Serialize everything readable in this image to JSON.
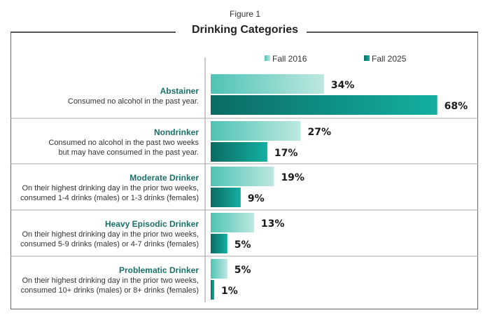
{
  "figure_label": "Figure 1",
  "chart_data": {
    "type": "bar",
    "orientation": "horizontal",
    "title": "Drinking Categories",
    "categories": [
      {
        "name": "Abstainer",
        "description": [
          "Consumed no alcohol in the past year."
        ]
      },
      {
        "name": "Nondrinker",
        "description": [
          "Consumed no alcohol in the past two weeks",
          "but may have consumed in the past year."
        ]
      },
      {
        "name": "Moderate Drinker",
        "description": [
          "On their highest drinking day in the prior two weeks,",
          "consumed 1-4 drinks (males) or 1-3 drinks (females)"
        ]
      },
      {
        "name": "Heavy Episodic Drinker",
        "description": [
          "On their highest drinking day in the prior two weeks,",
          "consumed 5-9 drinks (males) or 4-7 drinks (females)"
        ]
      },
      {
        "name": "Problematic Drinker",
        "description": [
          "On their highest drinking day in the prior two weeks,",
          "consumed 10+ drinks (males) or 8+ drinks (females)"
        ]
      }
    ],
    "series": [
      {
        "name": "Fall 2016",
        "values": [
          34,
          27,
          19,
          13,
          5
        ],
        "color_start": "#4fc3b4",
        "color_end": "#bde8e1"
      },
      {
        "name": "Fall 2025",
        "values": [
          68,
          17,
          9,
          5,
          1
        ],
        "color_start": "#0b6b63",
        "color_end": "#13b0a2"
      }
    ],
    "value_suffix": "%",
    "xlim": [
      0,
      100
    ],
    "legend_position": "top",
    "grid": false,
    "xlabel": "",
    "ylabel": ""
  }
}
